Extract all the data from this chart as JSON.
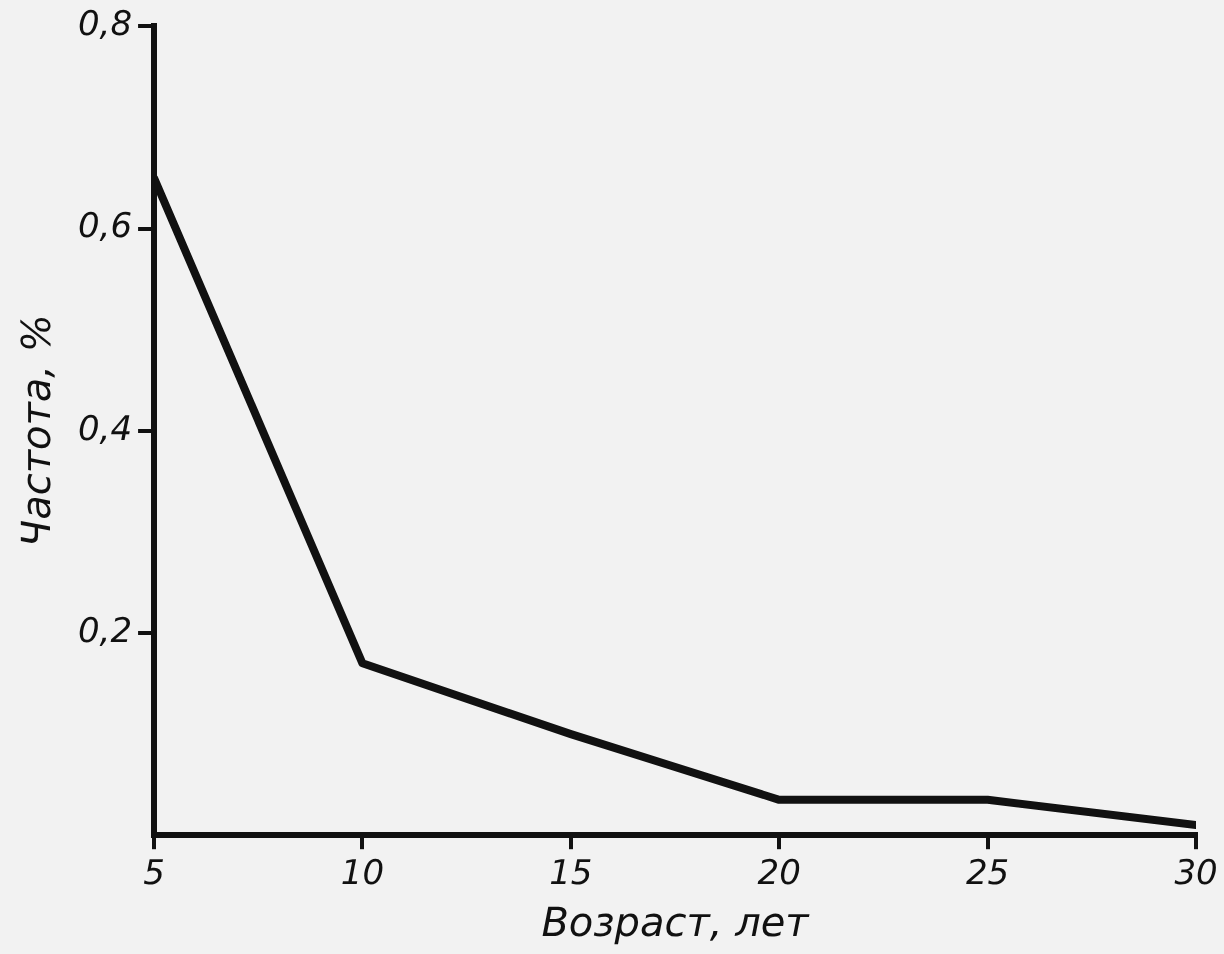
{
  "chart_data": {
    "type": "line",
    "xlabel": "Возраст, лет",
    "ylabel": "Частота, %",
    "x": [
      5,
      10,
      15,
      20,
      25,
      30
    ],
    "series": [
      {
        "color": "#111111",
        "values": [
          0.65,
          0.17,
          0.1,
          0.035,
          0.035,
          0.01
        ]
      }
    ],
    "xlim": [
      5,
      30
    ],
    "xticks": [
      5,
      10,
      15,
      20,
      25,
      30
    ],
    "ylim": [
      0,
      0.8
    ],
    "yticks": [
      {
        "value": 0.2,
        "label": "0,2"
      },
      {
        "value": 0.4,
        "label": "0,4"
      },
      {
        "value": 0.6,
        "label": "0,6"
      },
      {
        "value": 0.8,
        "label": "0,8"
      }
    ],
    "grid": false,
    "legend": false,
    "marker": "none",
    "line_style": "solid"
  }
}
